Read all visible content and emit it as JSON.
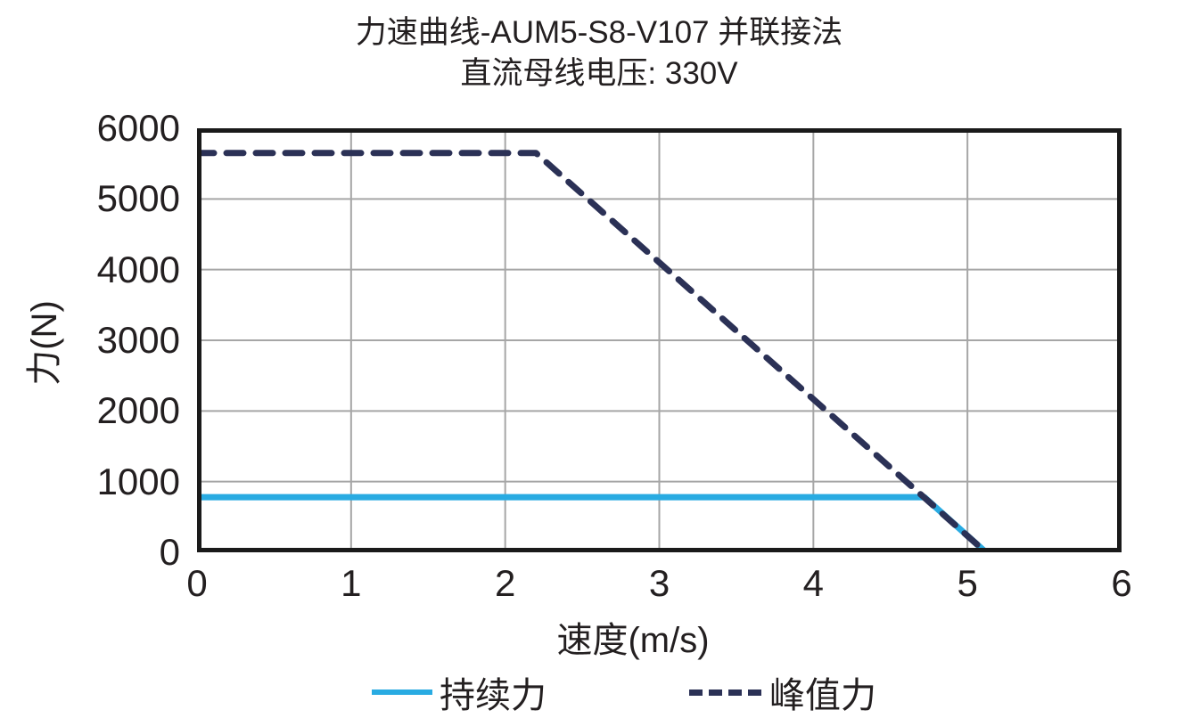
{
  "page": {
    "background": "#FFFFFF"
  },
  "chart_data": {
    "type": "line",
    "title": "力速曲线-AUM5-S8-V107 并联接法",
    "subtitle": "直流母线电压: 330V",
    "xlabel": "速度(m/s)",
    "ylabel": "力(N)",
    "xlim": [
      0,
      6
    ],
    "ylim": [
      0,
      6000
    ],
    "x_ticks": [
      0,
      1,
      2,
      3,
      4,
      5,
      6
    ],
    "y_ticks": [
      0,
      1000,
      2000,
      3000,
      4000,
      5000,
      6000
    ],
    "grid": true,
    "legend_position": "bottom",
    "colors": {
      "text": "#231F20",
      "grid": "#A6A6A6",
      "axis_border": "#1A1A1A"
    },
    "series": [
      {
        "name": "持续力",
        "line_style": "solid",
        "color": "#29ABE2",
        "points": [
          [
            0,
            780
          ],
          [
            4.72,
            780
          ],
          [
            5.12,
            0
          ]
        ]
      },
      {
        "name": "峰值力",
        "line_style": "dashed",
        "color": "#2B3156",
        "points": [
          [
            0,
            5650
          ],
          [
            2.2,
            5650
          ],
          [
            5.12,
            0
          ]
        ]
      }
    ]
  }
}
